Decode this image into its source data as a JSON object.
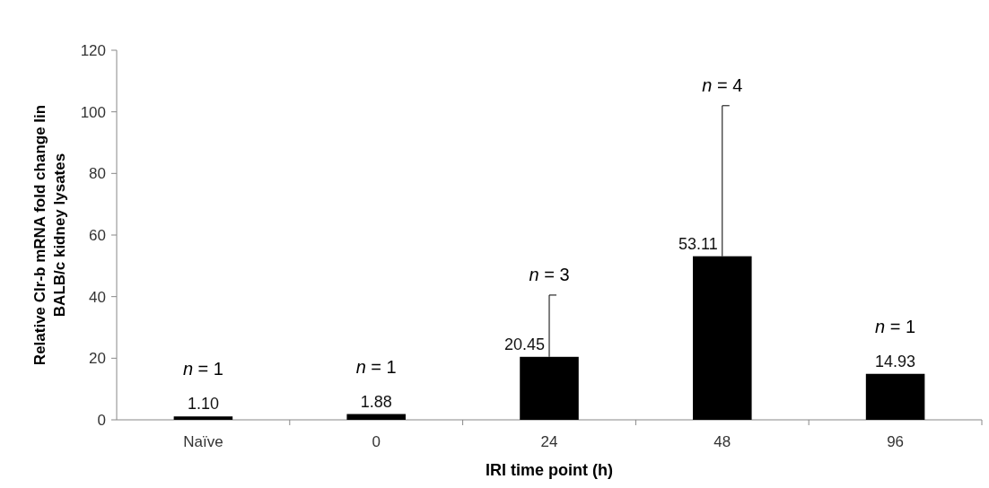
{
  "chart_data": {
    "type": "bar",
    "xlabel": "IRI time point (h)",
    "ylabel": "Relative Clr-b mRNA fold change Iin BALB/c kidney lysates",
    "categories": [
      "Naïve",
      "0",
      "24",
      "48",
      "96"
    ],
    "values": [
      1.1,
      1.88,
      20.45,
      53.11,
      14.93
    ],
    "color": "#000000",
    "errors": [
      null,
      null,
      [
        20.45,
        40.5
      ],
      [
        53.11,
        102
      ],
      null
    ],
    "value_labels": [
      "1.10",
      "1.88",
      "20.45",
      "53.11",
      "14.93"
    ],
    "ylim": [
      0,
      120
    ],
    "yticks": [
      0,
      20,
      40,
      60,
      80,
      100,
      120
    ],
    "grid": false,
    "annotations": [
      "n = 1",
      "n = 1",
      "n = 3",
      "n = 4",
      "n = 1"
    ]
  }
}
